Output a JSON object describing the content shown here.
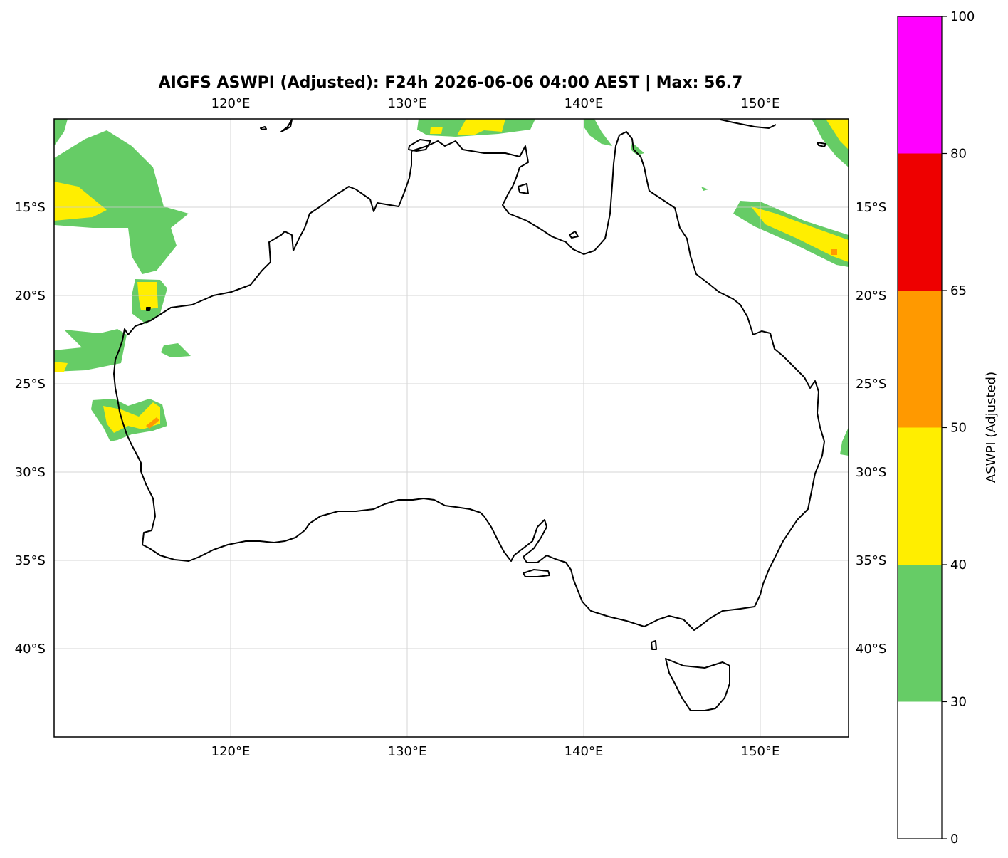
{
  "title": "AIGFS ASWPI (Adjusted): F24h 2026-06-06 04:00 AEST | Max: 56.7",
  "map": {
    "lon_range": [
      110,
      155
    ],
    "lat_range": [
      -45,
      -10
    ],
    "lon_ticks": [
      120,
      130,
      140,
      150
    ],
    "lat_ticks": [
      -15,
      -20,
      -25,
      -30,
      -35,
      -40
    ],
    "lon_tick_labels": [
      "120°E",
      "130°E",
      "140°E",
      "150°E"
    ],
    "lat_tick_labels": [
      "15°S",
      "20°S",
      "25°S",
      "30°S",
      "35°S",
      "40°S"
    ],
    "gridlines": true
  },
  "colorbar": {
    "label": "ASWPI (Adjusted)",
    "levels": [
      0,
      30,
      40,
      50,
      65,
      80,
      100
    ],
    "tick_labels": [
      "0",
      "30",
      "40",
      "50",
      "65",
      "80",
      "100"
    ],
    "colors": [
      "#ffffff",
      "#66cc66",
      "#ffee00",
      "#ff9900",
      "#ee0000",
      "#ff00ff"
    ]
  }
}
